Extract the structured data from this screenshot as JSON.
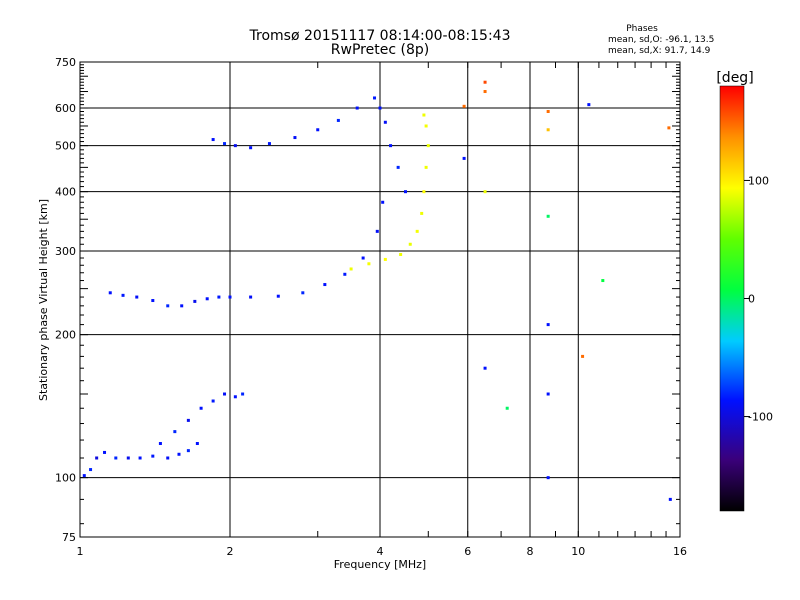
{
  "chart_data": {
    "type": "scatter",
    "title": "Tromsø 20151117 08:14:00-08:15:43",
    "subtitle": "RwPretec (8p)",
    "xlabel": "Frequency [MHz]",
    "ylabel": "Stationary phase Virtual Height [km]",
    "xscale": "log",
    "yscale": "log",
    "xlim": [
      1,
      16
    ],
    "ylim": [
      75,
      750
    ],
    "xticks": [
      1,
      2,
      4,
      6,
      8,
      10,
      16
    ],
    "xtick_labels": [
      "1",
      "2",
      "4",
      "6",
      "8",
      "10",
      "16"
    ],
    "yticks": [
      75,
      100,
      200,
      300,
      400,
      500,
      600,
      750
    ],
    "ytick_labels": [
      "75",
      "100",
      "200",
      "300",
      "400",
      "500",
      "600",
      "750"
    ],
    "grid": true,
    "stats": {
      "header": "Phases",
      "line_o": "mean, sd,O: -96.1, 13.5",
      "line_x": "mean, sd,X:  91.7, 14.9"
    },
    "colorbar": {
      "label": "[deg]",
      "range": [
        -180,
        180
      ],
      "ticks": [
        100,
        0,
        -100
      ],
      "tick_labels": [
        "100",
        "0",
        "-100"
      ],
      "colormap": "rainbow"
    },
    "series": [
      {
        "trace": "E layer lower branch (blue)",
        "x": [
          1.02,
          1.05,
          1.08,
          1.12,
          1.18,
          1.25,
          1.32,
          1.4,
          1.5,
          1.58,
          1.65,
          1.72
        ],
        "y": [
          101,
          104,
          110,
          113,
          110,
          110,
          110,
          111,
          110,
          112,
          114,
          118
        ],
        "phase": [
          -100,
          -95,
          -110,
          -100,
          -95,
          -105,
          -100,
          -98,
          -102,
          -100,
          -95,
          -100
        ]
      },
      {
        "trace": "E/Es upper branch (blue)",
        "x": [
          1.45,
          1.55,
          1.65,
          1.75,
          1.85,
          1.95,
          2.05,
          2.12
        ],
        "y": [
          118,
          125,
          132,
          140,
          145,
          150,
          148,
          150
        ],
        "phase": [
          -100,
          -95,
          -105,
          -100,
          -98,
          -102,
          -100,
          -95
        ]
      },
      {
        "trace": "F O-mode low branch (blue)",
        "x": [
          1.15,
          1.22,
          1.3,
          1.4,
          1.5,
          1.6,
          1.7,
          1.8,
          1.9,
          2.0,
          2.2,
          2.5,
          2.8,
          3.1,
          3.4,
          3.7,
          3.95,
          4.05
        ],
        "y": [
          245,
          242,
          240,
          236,
          230,
          230,
          235,
          238,
          240,
          240,
          240,
          241,
          245,
          255,
          268,
          290,
          330,
          380
        ],
        "phase": [
          -100,
          -98,
          -102,
          -100,
          -95,
          -100,
          -105,
          -100,
          -98,
          -100,
          -102,
          -100,
          -95,
          -100,
          -98,
          -100,
          -102,
          -100
        ]
      },
      {
        "trace": "F O-mode high branch (blue)",
        "x": [
          1.85,
          1.95,
          2.05,
          2.2,
          2.4,
          2.7,
          3.0,
          3.3,
          3.6,
          3.9,
          4.0,
          4.1,
          4.2,
          4.35,
          4.5
        ],
        "y": [
          515,
          505,
          500,
          495,
          505,
          520,
          540,
          565,
          600,
          630,
          600,
          560,
          500,
          450,
          400
        ],
        "phase": [
          -100,
          -95,
          -105,
          -100,
          -98,
          -102,
          -100,
          -95,
          -100,
          -98,
          -100,
          -102,
          -100,
          -95,
          -100
        ]
      },
      {
        "trace": "F X-mode branch (yellow)",
        "x": [
          3.5,
          3.8,
          4.1,
          4.4,
          4.6,
          4.75,
          4.85,
          4.9,
          4.95,
          5.0,
          4.95,
          4.9
        ],
        "y": [
          275,
          282,
          288,
          295,
          310,
          330,
          360,
          400,
          450,
          500,
          550,
          580
        ],
        "phase": [
          90,
          92,
          95,
          90,
          88,
          92,
          90,
          95,
          90,
          88,
          92,
          90
        ]
      },
      {
        "trace": "scattered points",
        "x": [
          5.9,
          5.9,
          6.5,
          6.5,
          6.5,
          6.5,
          7.2,
          8.7,
          8.7,
          8.7,
          8.7,
          8.7,
          8.7,
          10.5,
          11.2,
          15.2,
          15.3,
          10.2
        ],
        "y": [
          605,
          470,
          680,
          650,
          400,
          170,
          140,
          590,
          540,
          355,
          210,
          150,
          100,
          610,
          260,
          545,
          90,
          180
        ],
        "phase": [
          150,
          -100,
          160,
          150,
          90,
          -100,
          -10,
          150,
          120,
          -10,
          -100,
          -100,
          -100,
          -100,
          0,
          150,
          -100,
          150
        ]
      }
    ]
  }
}
